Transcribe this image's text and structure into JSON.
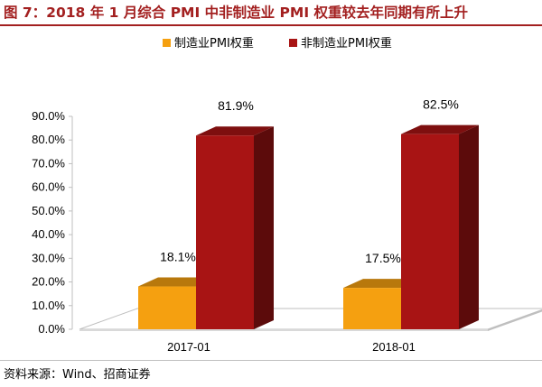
{
  "header": {
    "title": "图 7：2018 年 1 月综合 PMI 中非制造业 PMI 权重较去年同期有所上升"
  },
  "footer": {
    "source": "资料来源：Wind、招商证券"
  },
  "chart_data": {
    "type": "bar",
    "categories": [
      "2017-01",
      "2018-01"
    ],
    "series": [
      {
        "name": "制造业PMI权重",
        "values": [
          18.1,
          17.5
        ],
        "color": "#f5a010"
      },
      {
        "name": "非制造业PMI权重",
        "values": [
          81.9,
          82.5
        ],
        "color": "#a81414"
      }
    ],
    "data_labels": [
      [
        "18.1%",
        "17.5%"
      ],
      [
        "81.9%",
        "82.5%"
      ]
    ],
    "yticks": [
      "0.0%",
      "10.0%",
      "20.0%",
      "30.0%",
      "40.0%",
      "50.0%",
      "60.0%",
      "70.0%",
      "80.0%",
      "90.0%"
    ],
    "ylim": [
      0,
      90
    ],
    "legend_position": "top",
    "grid": false,
    "style": "3d-bar"
  }
}
